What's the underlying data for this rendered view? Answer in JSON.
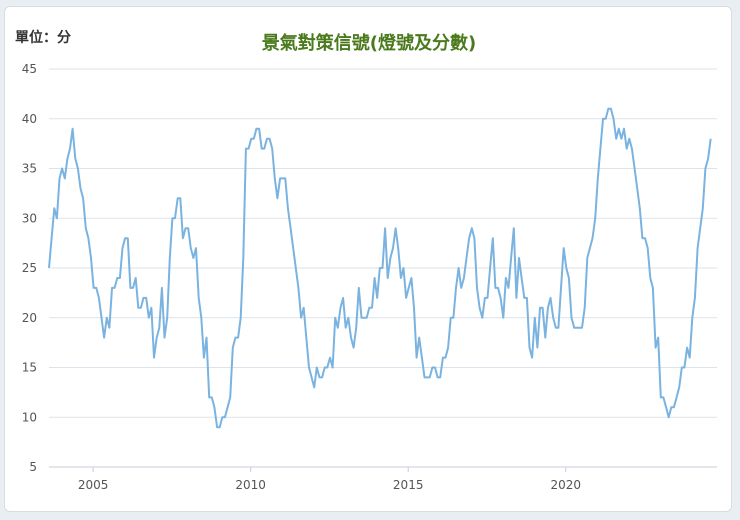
{
  "chart_data": {
    "type": "line",
    "title": "景氣對策信號(燈號及分數)",
    "unit_label": "單位：分",
    "xlabel": "",
    "ylabel": "",
    "ylim": [
      5,
      45
    ],
    "xlim": [
      2003.6,
      2024.8
    ],
    "yticks": [
      5,
      10,
      15,
      20,
      25,
      30,
      35,
      40,
      45
    ],
    "xticks": [
      2005,
      2010,
      2015,
      2020
    ],
    "grid": true,
    "legend": "none",
    "colors": {
      "line": "#7ab3e0",
      "title": "#4a7a1c",
      "grid": "#dde3ea",
      "axis": "#c7ced6",
      "tick_text": "#555555"
    },
    "series": [
      {
        "x_start": 2003.6,
        "x_step_months": 1,
        "values": [
          25,
          28,
          31,
          30,
          34,
          35,
          34,
          36,
          37,
          39,
          36,
          35,
          33,
          32,
          29,
          28,
          26,
          23,
          23,
          22,
          20,
          18,
          20,
          19,
          23,
          23,
          24,
          24,
          27,
          28,
          28,
          23,
          23,
          24,
          21,
          21,
          22,
          22,
          20,
          21,
          16,
          18,
          19,
          23,
          18,
          20,
          26,
          30,
          30,
          32,
          32,
          28,
          29,
          29,
          27,
          26,
          27,
          22,
          20,
          16,
          18,
          12,
          12,
          11,
          9,
          9,
          10,
          10,
          11,
          12,
          17,
          18,
          18,
          20,
          26,
          37,
          37,
          38,
          38,
          39,
          39,
          37,
          37,
          38,
          38,
          37,
          34,
          32,
          34,
          34,
          34,
          31,
          29,
          27,
          25,
          23,
          20,
          21,
          18,
          15,
          14,
          13,
          15,
          14,
          14,
          15,
          15,
          16,
          15,
          20,
          19,
          21,
          22,
          19,
          20,
          18,
          17,
          19,
          23,
          20,
          20,
          20,
          21,
          21,
          24,
          22,
          25,
          25,
          29,
          24,
          26,
          27,
          29,
          27,
          24,
          25,
          22,
          23,
          24,
          21,
          16,
          18,
          16,
          14,
          14,
          14,
          15,
          15,
          14,
          14,
          16,
          16,
          17,
          20,
          20,
          23,
          25,
          23,
          24,
          26,
          28,
          29,
          28,
          23,
          21,
          20,
          22,
          22,
          25,
          28,
          23,
          23,
          22,
          20,
          24,
          23,
          26,
          29,
          22,
          26,
          24,
          22,
          22,
          17,
          16,
          20,
          17,
          21,
          21,
          18,
          21,
          22,
          20,
          19,
          19,
          23,
          27,
          25,
          24,
          20,
          19,
          19,
          19,
          19,
          21,
          26,
          27,
          28,
          30,
          34,
          37,
          40,
          40,
          41,
          41,
          40,
          38,
          39,
          38,
          39,
          37,
          38,
          37,
          35,
          33,
          31,
          28,
          28,
          27,
          24,
          23,
          17,
          18,
          12,
          12,
          11,
          10,
          11,
          11,
          12,
          13,
          15,
          15,
          17,
          16,
          20,
          22,
          27,
          29,
          31,
          35,
          36,
          38
        ]
      }
    ]
  }
}
